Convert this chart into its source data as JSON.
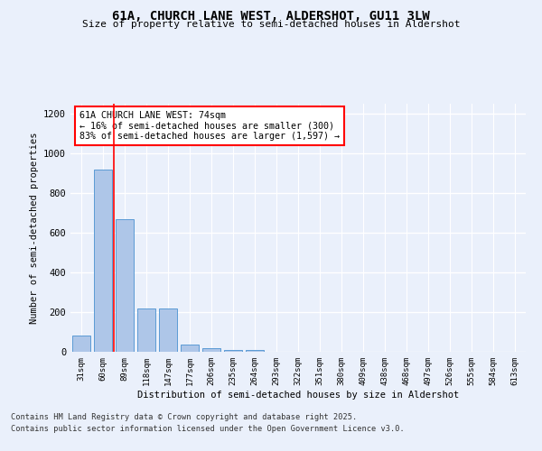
{
  "title": "61A, CHURCH LANE WEST, ALDERSHOT, GU11 3LW",
  "subtitle": "Size of property relative to semi-detached houses in Aldershot",
  "xlabel": "Distribution of semi-detached houses by size in Aldershot",
  "ylabel": "Number of semi-detached properties",
  "categories": [
    "31sqm",
    "60sqm",
    "89sqm",
    "118sqm",
    "147sqm",
    "177sqm",
    "206sqm",
    "235sqm",
    "264sqm",
    "293sqm",
    "322sqm",
    "351sqm",
    "380sqm",
    "409sqm",
    "438sqm",
    "468sqm",
    "497sqm",
    "526sqm",
    "555sqm",
    "584sqm",
    "613sqm"
  ],
  "values": [
    80,
    920,
    670,
    220,
    220,
    35,
    20,
    10,
    10,
    0,
    0,
    0,
    0,
    0,
    0,
    0,
    0,
    0,
    0,
    0,
    0
  ],
  "bar_color": "#aec6e8",
  "bar_edge_color": "#5b9bd5",
  "redline_x": 1.5,
  "ylim": [
    0,
    1250
  ],
  "yticks": [
    0,
    200,
    400,
    600,
    800,
    1000,
    1200
  ],
  "annotation_title": "61A CHURCH LANE WEST: 74sqm",
  "annotation_line1": "← 16% of semi-detached houses are smaller (300)",
  "annotation_line2": "83% of semi-detached houses are larger (1,597) →",
  "footer_line1": "Contains HM Land Registry data © Crown copyright and database right 2025.",
  "footer_line2": "Contains public sector information licensed under the Open Government Licence v3.0.",
  "bg_color": "#eaf0fb",
  "plot_bg_color": "#eaf0fb",
  "grid_color": "#ffffff",
  "redline_color": "#ff0000"
}
